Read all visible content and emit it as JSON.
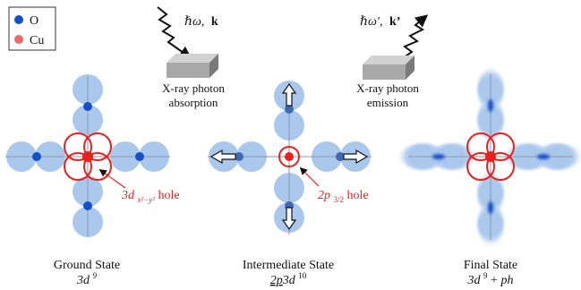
{
  "legend": {
    "items": [
      {
        "symbol": "O",
        "color": "#1550c8"
      },
      {
        "symbol": "Cu",
        "color": "#f06868"
      }
    ]
  },
  "incoming_photon": {
    "hbar_omega": "ℏω,",
    "k": "k"
  },
  "outgoing_photon": {
    "hbar_omega_prime": "ℏω′,",
    "k_prime": "k’"
  },
  "absorption_box": {
    "line1": "X-ray photon",
    "line2": "absorption"
  },
  "emission_box": {
    "line1": "X-ray photon",
    "line2": "emission"
  },
  "ground": {
    "title": "Ground State",
    "config_base": "3d",
    "config_sup": "9",
    "hole_annotation": {
      "prefix": "3d",
      "subscript": "x²−y²",
      "suffix": " hole"
    }
  },
  "intermediate": {
    "title": "Intermediate State",
    "config_2p": "2p",
    "config_3d": "3d",
    "config_sup": "10",
    "hole_annotation": {
      "prefix": "2p",
      "subscript": "3/2",
      "suffix": " hole"
    }
  },
  "final": {
    "title": "Final State",
    "config_base": "3d",
    "config_sup": "9",
    "config_plus": " + ",
    "config_ph": "ph"
  },
  "colors": {
    "orbital_blue": "#aac8ec",
    "oxygen_dark": "#1550c8",
    "copper_red": "#e8201e",
    "box_gray": "#9c9c9c",
    "axis_gray": "#8c97aa"
  },
  "icons": [
    "wavy-arrow-icon",
    "arrow-icon",
    "detector-box-icon"
  ]
}
